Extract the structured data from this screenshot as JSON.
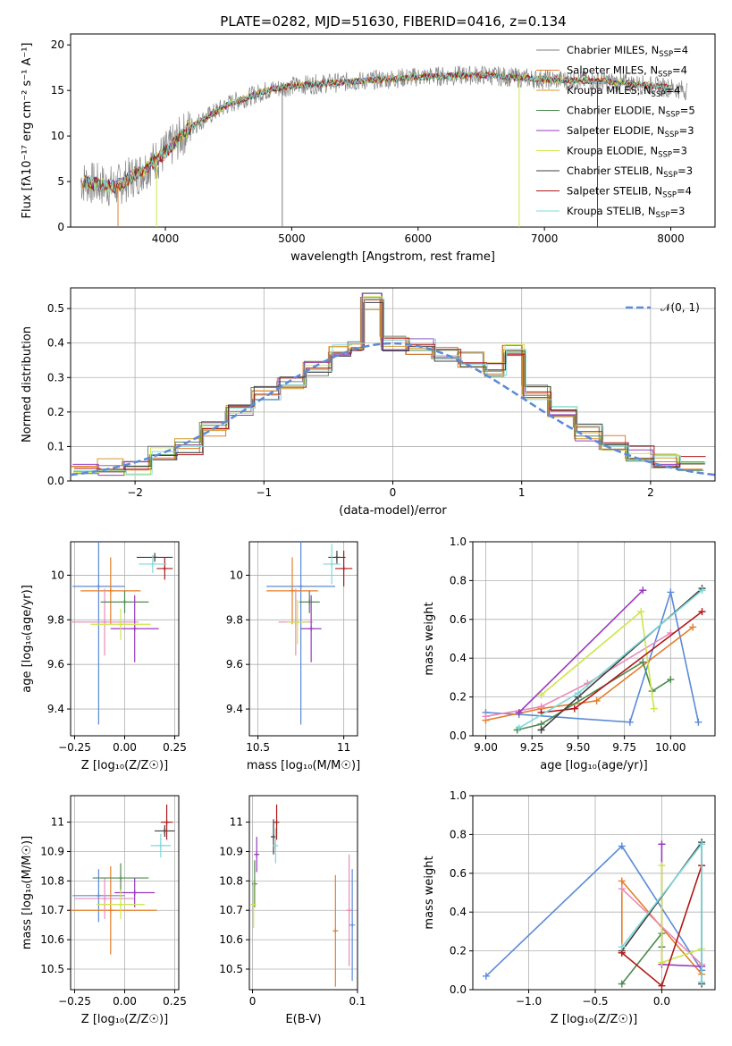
{
  "figure_title": "PLATE=0282, MJD=51630, FIBERID=0416, z=0.134",
  "colors": {
    "chabrier_miles": "#7f7f7f",
    "salpeter_miles": "#e57e2a",
    "kroupa_miles": "#d49a2a",
    "chabrier_elodie": "#4f8a4f",
    "salpeter_elodie": "#9a3ac0",
    "kroupa_elodie": "#cde64a",
    "chabrier_stelib": "#404040",
    "salpeter_stelib": "#b01818",
    "kroupa_stelib": "#7fd8d8",
    "blue": "#5b8ad8",
    "orange": "#e57e2a",
    "green": "#4f8a4f",
    "red": "#b01818",
    "purple": "#9a3ac0",
    "pink": "#e88ab8",
    "olive": "#cde64a",
    "cyan": "#7fd8d8",
    "dark": "#404040"
  },
  "chart_data": [
    {
      "id": "spectrum",
      "type": "line",
      "xlabel": "wavelength [Angstrom, rest frame]",
      "ylabel": "Flux [fλ10⁻¹⁷ erg cm⁻² s⁻¹ A⁻¹]",
      "xlim": [
        3250,
        8350
      ],
      "ylim": [
        0,
        21.2
      ],
      "xticks": [
        4000,
        5000,
        6000,
        7000,
        8000
      ],
      "yticks": [
        0,
        5,
        10,
        15,
        20
      ],
      "grid": false,
      "legend": "top-right",
      "data_envelope": {
        "x": [
          3330,
          3600,
          3800,
          4000,
          4200,
          4500,
          4800,
          5000,
          5500,
          6000,
          6500,
          7000,
          7500,
          8000,
          8130
        ],
        "y": [
          5.0,
          4.4,
          6.0,
          8.2,
          11.0,
          13.5,
          15.0,
          15.5,
          16.0,
          16.5,
          16.7,
          16.2,
          16.0,
          15.3,
          15.0
        ]
      },
      "series": [
        {
          "name": "Chabrier MILES, N",
          "sub": "SSP",
          "suffix": "=4",
          "color_key": "chabrier_miles"
        },
        {
          "name": "Salpeter MILES, N",
          "sub": "SSP",
          "suffix": "=4",
          "color_key": "salpeter_miles"
        },
        {
          "name": "Kroupa MILES, N",
          "sub": "SSP",
          "suffix": "=4",
          "color_key": "kroupa_miles"
        },
        {
          "name": "Chabrier ELODIE, N",
          "sub": "SSP",
          "suffix": "=5",
          "color_key": "chabrier_elodie"
        },
        {
          "name": "Salpeter ELODIE, N",
          "sub": "SSP",
          "suffix": "=3",
          "color_key": "salpeter_elodie"
        },
        {
          "name": "Kroupa ELODIE, N",
          "sub": "SSP",
          "suffix": "=3",
          "color_key": "kroupa_elodie"
        },
        {
          "name": "Chabrier STELIB, N",
          "sub": "SSP",
          "suffix": "=3",
          "color_key": "chabrier_stelib"
        },
        {
          "name": "Salpeter STELIB, N",
          "sub": "SSP",
          "suffix": "=4",
          "color_key": "salpeter_stelib"
        },
        {
          "name": "Kroupa STELIB, N",
          "sub": "SSP",
          "suffix": "=3",
          "color_key": "kroupa_stelib"
        }
      ]
    },
    {
      "id": "residuals",
      "type": "line",
      "xlabel": "(data-model)/error",
      "ylabel": "Normed distribution",
      "xlim": [
        -2.5,
        2.5
      ],
      "ylim": [
        0,
        0.56
      ],
      "xticks": [
        -2,
        -1,
        0,
        1,
        2
      ],
      "yticks": [
        0.0,
        0.1,
        0.2,
        0.3,
        0.4,
        0.5
      ],
      "grid": true,
      "legend": "top-right",
      "reference_curve": {
        "name": "𝒩(0, 1)",
        "mean": 0,
        "sigma": 1
      },
      "histogram_bins": {
        "x": [
          -2.5,
          -2.3,
          -2.1,
          -1.9,
          -1.7,
          -1.5,
          -1.3,
          -1.1,
          -0.9,
          -0.7,
          -0.5,
          -0.35,
          -0.25,
          -0.1,
          0.1,
          0.3,
          0.5,
          0.7,
          0.85,
          1.0,
          1.2,
          1.4,
          1.6,
          1.8,
          2.0,
          2.2,
          2.4
        ],
        "y": [
          0.03,
          0.04,
          0.04,
          0.08,
          0.1,
          0.15,
          0.2,
          0.25,
          0.28,
          0.33,
          0.38,
          0.4,
          0.52,
          0.4,
          0.39,
          0.37,
          0.35,
          0.32,
          0.38,
          0.26,
          0.2,
          0.14,
          0.11,
          0.08,
          0.06,
          0.05,
          0.03
        ]
      }
    },
    {
      "id": "age_vs_z",
      "type": "scatter",
      "xlabel": "Z [log₁₀(Z/Z☉)]",
      "ylabel": "age  [log₁₀(age/yr)]",
      "xlim": [
        -0.27,
        0.27
      ],
      "ylim": [
        9.28,
        10.15
      ],
      "xticks": [
        -0.25,
        0.0,
        0.25
      ],
      "xtick_labels": [
        "−0.25",
        "0.00",
        "0.25"
      ],
      "yticks": [
        9.4,
        9.6,
        9.8,
        10.0
      ],
      "grid": true,
      "points": [
        {
          "x": -0.13,
          "y": 9.95,
          "xerr": 0.13,
          "yerr": 0.62,
          "color_key": "blue"
        },
        {
          "x": -0.07,
          "y": 9.93,
          "xerr": 0.15,
          "yerr": 0.15,
          "color_key": "orange"
        },
        {
          "x": -0.1,
          "y": 9.79,
          "xerr": 0.17,
          "yerr": 0.15,
          "color_key": "pink"
        },
        {
          "x": 0.0,
          "y": 9.88,
          "xerr": 0.12,
          "yerr": 0.05,
          "color_key": "green"
        },
        {
          "x": 0.05,
          "y": 9.76,
          "xerr": 0.12,
          "yerr": 0.15,
          "color_key": "purple"
        },
        {
          "x": -0.02,
          "y": 9.78,
          "xerr": 0.15,
          "yerr": 0.07,
          "color_key": "olive"
        },
        {
          "x": 0.15,
          "y": 10.08,
          "xerr": 0.09,
          "yerr": 0.02,
          "color_key": "dark"
        },
        {
          "x": 0.2,
          "y": 10.03,
          "xerr": 0.04,
          "yerr": 0.05,
          "color_key": "red"
        },
        {
          "x": 0.14,
          "y": 10.05,
          "xerr": 0.07,
          "yerr": 0.04,
          "color_key": "cyan"
        }
      ]
    },
    {
      "id": "age_vs_mass",
      "type": "scatter",
      "xlabel": "mass [log₁₀(M/M☉)]",
      "ylabel": "",
      "xlim": [
        10.45,
        11.08
      ],
      "ylim": [
        9.28,
        10.15
      ],
      "xticks": [
        10.5,
        11.0
      ],
      "yticks": [
        9.4,
        9.6,
        9.8,
        10.0
      ],
      "grid": true,
      "points": [
        {
          "x": 10.75,
          "y": 9.95,
          "xerr": 0.2,
          "yerr": 0.62,
          "color_key": "blue"
        },
        {
          "x": 10.7,
          "y": 9.93,
          "xerr": 0.15,
          "yerr": 0.15,
          "color_key": "orange"
        },
        {
          "x": 10.72,
          "y": 9.79,
          "xerr": 0.1,
          "yerr": 0.15,
          "color_key": "pink"
        },
        {
          "x": 10.8,
          "y": 9.88,
          "xerr": 0.06,
          "yerr": 0.05,
          "color_key": "green"
        },
        {
          "x": 10.81,
          "y": 9.76,
          "xerr": 0.06,
          "yerr": 0.15,
          "color_key": "purple"
        },
        {
          "x": 10.73,
          "y": 9.79,
          "xerr": 0.06,
          "yerr": 0.1,
          "color_key": "olive"
        },
        {
          "x": 10.96,
          "y": 10.08,
          "xerr": 0.05,
          "yerr": 0.03,
          "color_key": "dark"
        },
        {
          "x": 11.0,
          "y": 10.03,
          "xerr": 0.05,
          "yerr": 0.08,
          "color_key": "red"
        },
        {
          "x": 10.93,
          "y": 10.05,
          "xerr": 0.05,
          "yerr": 0.09,
          "color_key": "cyan"
        }
      ]
    },
    {
      "id": "weight_vs_age",
      "type": "line",
      "xlabel": "age  [log₁₀(age/yr)]",
      "ylabel": "mass weight",
      "xlim": [
        8.93,
        10.24
      ],
      "ylim": [
        0,
        1.0
      ],
      "xticks": [
        9.0,
        9.25,
        9.5,
        9.75,
        10.0
      ],
      "xtick_labels": [
        "9.00",
        "9.25",
        "9.50",
        "9.75",
        "10.00"
      ],
      "yticks": [
        0.0,
        0.2,
        0.4,
        0.6,
        0.8,
        1.0
      ],
      "grid": true,
      "series": [
        {
          "color_key": "blue",
          "x": [
            9.0,
            9.18,
            9.78,
            10.0,
            10.15
          ],
          "y": [
            0.12,
            0.11,
            0.07,
            0.74,
            0.07
          ]
        },
        {
          "color_key": "orange",
          "x": [
            9.0,
            9.3,
            9.6,
            10.12
          ],
          "y": [
            0.08,
            0.14,
            0.18,
            0.56
          ]
        },
        {
          "color_key": "pink",
          "x": [
            9.0,
            9.3,
            9.55,
            10.0
          ],
          "y": [
            0.1,
            0.15,
            0.27,
            0.53
          ]
        },
        {
          "color_key": "green",
          "x": [
            9.17,
            9.3,
            9.85,
            9.9,
            10.0
          ],
          "y": [
            0.03,
            0.06,
            0.38,
            0.23,
            0.29
          ]
        },
        {
          "color_key": "purple",
          "x": [
            9.18,
            9.85
          ],
          "y": [
            0.12,
            0.75
          ]
        },
        {
          "color_key": "olive",
          "x": [
            9.3,
            9.84,
            9.91
          ],
          "y": [
            0.21,
            0.64,
            0.14
          ]
        },
        {
          "color_key": "dark",
          "x": [
            9.3,
            9.5,
            10.17
          ],
          "y": [
            0.03,
            0.2,
            0.76
          ]
        },
        {
          "color_key": "red",
          "x": [
            9.3,
            9.48,
            10.17
          ],
          "y": [
            0.12,
            0.14,
            0.64
          ]
        },
        {
          "color_key": "cyan",
          "x": [
            9.18,
            9.5,
            10.17
          ],
          "y": [
            0.04,
            0.22,
            0.75
          ]
        }
      ]
    },
    {
      "id": "mass_vs_z",
      "type": "scatter",
      "xlabel": "Z [log₁₀(Z/Z☉)]",
      "ylabel": "mass [log₁₀(M/M☉)]",
      "xlim": [
        -0.27,
        0.27
      ],
      "ylim": [
        10.43,
        11.09
      ],
      "xticks": [
        -0.25,
        0.0,
        0.25
      ],
      "xtick_labels": [
        "−0.25",
        "0.00",
        "0.25"
      ],
      "yticks": [
        10.5,
        10.6,
        10.7,
        10.8,
        10.9,
        11.0
      ],
      "grid": true,
      "points": [
        {
          "x": -0.13,
          "y": 10.75,
          "xerr": 0.13,
          "yerr": 0.09,
          "color_key": "blue"
        },
        {
          "x": -0.07,
          "y": 10.7,
          "xerr": 0.23,
          "yerr": 0.15,
          "color_key": "orange"
        },
        {
          "x": -0.1,
          "y": 10.74,
          "xerr": 0.15,
          "yerr": 0.07,
          "color_key": "pink"
        },
        {
          "x": -0.02,
          "y": 10.81,
          "xerr": 0.14,
          "yerr": 0.05,
          "color_key": "green"
        },
        {
          "x": 0.05,
          "y": 10.76,
          "xerr": 0.1,
          "yerr": 0.05,
          "color_key": "purple"
        },
        {
          "x": -0.02,
          "y": 10.72,
          "xerr": 0.12,
          "yerr": 0.05,
          "color_key": "olive"
        },
        {
          "x": 0.2,
          "y": 10.97,
          "xerr": 0.05,
          "yerr": 0.02,
          "color_key": "dark"
        },
        {
          "x": 0.21,
          "y": 11.0,
          "xerr": 0.03,
          "yerr": 0.06,
          "color_key": "red"
        },
        {
          "x": 0.18,
          "y": 10.92,
          "xerr": 0.05,
          "yerr": 0.04,
          "color_key": "cyan"
        }
      ]
    },
    {
      "id": "mass_vs_ebv",
      "type": "scatter",
      "xlabel": "E(B-V)",
      "ylabel": "",
      "xlim": [
        -0.003,
        0.1
      ],
      "ylim": [
        10.43,
        11.09
      ],
      "xticks": [
        0.0,
        0.1
      ],
      "yticks": [
        10.5,
        10.6,
        10.7,
        10.8,
        10.9,
        11.0
      ],
      "grid": true,
      "points": [
        {
          "x": 0.095,
          "y": 10.65,
          "yerr": 0.19,
          "color_key": "blue"
        },
        {
          "x": 0.079,
          "y": 10.63,
          "yerr": 0.19,
          "color_key": "orange"
        },
        {
          "x": 0.092,
          "y": 10.7,
          "yerr": 0.19,
          "color_key": "pink"
        },
        {
          "x": 0.02,
          "y": 10.95,
          "yerr": 0.06,
          "color_key": "dark"
        },
        {
          "x": 0.023,
          "y": 11.0,
          "yerr": 0.06,
          "color_key": "red"
        },
        {
          "x": 0.022,
          "y": 10.92,
          "yerr": 0.06,
          "color_key": "cyan"
        },
        {
          "x": 0.004,
          "y": 10.89,
          "yerr": 0.06,
          "color_key": "purple"
        },
        {
          "x": 0.002,
          "y": 10.79,
          "yerr": 0.08,
          "color_key": "green"
        },
        {
          "x": 0.001,
          "y": 10.72,
          "yerr": 0.08,
          "color_key": "olive"
        }
      ]
    },
    {
      "id": "weight_vs_z",
      "type": "line",
      "xlabel": "Z [log₁₀(Z/Z☉)]",
      "ylabel": "mass weight",
      "xlim": [
        -1.42,
        0.4
      ],
      "ylim": [
        0,
        1.0
      ],
      "xticks": [
        -1.0,
        -0.5,
        0.0
      ],
      "xtick_labels": [
        "−1.0",
        "−0.5",
        "0.0"
      ],
      "yticks": [
        0.0,
        0.2,
        0.4,
        0.6,
        0.8,
        1.0
      ],
      "grid": true,
      "series": [
        {
          "color_key": "blue",
          "x": [
            -1.32,
            -0.3,
            0.3,
            0.3
          ],
          "y": [
            0.07,
            0.74,
            0.1,
            0.12
          ]
        },
        {
          "color_key": "orange",
          "x": [
            -0.3,
            -0.3,
            0.3
          ],
          "y": [
            0.19,
            0.56,
            0.08
          ]
        },
        {
          "color_key": "pink",
          "x": [
            -0.3,
            0.3
          ],
          "y": [
            0.52,
            0.13
          ]
        },
        {
          "color_key": "green",
          "x": [
            -0.3,
            0.0,
            0.0
          ],
          "y": [
            0.03,
            0.29,
            0.22
          ]
        },
        {
          "color_key": "purple",
          "x": [
            0.0,
            0.0,
            0.3
          ],
          "y": [
            0.75,
            0.13,
            0.12
          ]
        },
        {
          "color_key": "olive",
          "x": [
            0.0,
            0.0,
            0.3
          ],
          "y": [
            0.64,
            0.14,
            0.21
          ]
        },
        {
          "color_key": "dark",
          "x": [
            -0.3,
            0.3,
            0.3
          ],
          "y": [
            0.2,
            0.76,
            0.03
          ]
        },
        {
          "color_key": "red",
          "x": [
            -0.3,
            0.0,
            0.3
          ],
          "y": [
            0.19,
            0.02,
            0.64
          ]
        },
        {
          "color_key": "cyan",
          "x": [
            -0.3,
            0.3,
            0.3
          ],
          "y": [
            0.22,
            0.75,
            0.04
          ]
        }
      ]
    }
  ]
}
